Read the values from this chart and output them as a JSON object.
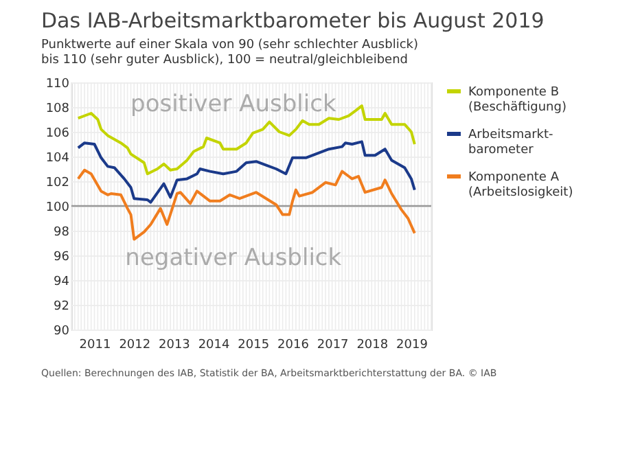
{
  "chart_data": {
    "type": "line",
    "title": "Das IAB-Arbeitsmarktbarometer bis August 2019",
    "subtitle": "Punktwerte auf einer Skala von 90 (sehr schlechter Ausblick) bis 110 (sehr guter Ausblick), 100 = neutral/gleichbleibend",
    "annotations": [
      "positiver Ausblick",
      "negativer Ausblick",
      "Quellen: Berechnungen des IAB, Statistik der BA, Arbeitsmarktberichterstattung der BA. © IAB"
    ],
    "series": [
      {
        "name": "Komponente B (Beschäftigung)",
        "color": "#c3d400",
        "x": [
          "2011-02",
          "2011-06",
          "2011-08",
          "2011-09",
          "2011-11",
          "2012-03",
          "2012-05",
          "2012-06",
          "2012-10",
          "2012-11",
          "2013-02",
          "2013-04",
          "2013-06",
          "2013-08",
          "2013-11",
          "2014-01",
          "2014-04",
          "2014-05",
          "2014-09",
          "2014-10",
          "2015-02",
          "2015-05",
          "2015-07",
          "2015-10",
          "2015-12",
          "2016-03",
          "2016-06",
          "2016-08",
          "2016-10",
          "2016-12",
          "2017-03",
          "2017-06",
          "2017-09",
          "2017-12",
          "2018-02",
          "2018-04",
          "2018-05",
          "2018-10",
          "2018-11",
          "2019-01",
          "2019-05",
          "2019-07",
          "2019-08"
        ],
        "values": [
          107.1,
          107.5,
          107.0,
          106.2,
          105.7,
          105.1,
          104.7,
          104.2,
          103.5,
          102.6,
          103.0,
          103.4,
          102.9,
          103.0,
          103.7,
          104.4,
          104.8,
          105.5,
          105.1,
          104.6,
          104.6,
          105.1,
          105.9,
          106.2,
          106.8,
          106.0,
          105.7,
          106.2,
          106.9,
          106.6,
          106.6,
          107.1,
          107.0,
          107.3,
          107.7,
          108.1,
          107.0,
          107.0,
          107.5,
          106.6,
          106.6,
          106.0,
          105.0
        ]
      },
      {
        "name": "Arbeitsmarkt-barometer",
        "color": "#1b3a8a",
        "x": [
          "2011-02",
          "2011-04",
          "2011-07",
          "2011-09",
          "2011-11",
          "2012-01",
          "2012-04",
          "2012-06",
          "2012-07",
          "2012-11",
          "2012-12",
          "2013-04",
          "2013-06",
          "2013-08",
          "2013-11",
          "2014-02",
          "2014-03",
          "2014-06",
          "2014-10",
          "2015-02",
          "2015-05",
          "2015-08",
          "2015-11",
          "2016-02",
          "2016-05",
          "2016-07",
          "2016-11",
          "2017-02",
          "2017-06",
          "2017-10",
          "2017-11",
          "2018-01",
          "2018-04",
          "2018-05",
          "2018-08",
          "2018-11",
          "2019-01",
          "2019-05",
          "2019-07",
          "2019-08"
        ],
        "values": [
          104.7,
          105.1,
          105.0,
          103.9,
          103.2,
          103.1,
          102.2,
          101.5,
          100.6,
          100.5,
          100.3,
          101.8,
          100.7,
          102.1,
          102.2,
          102.6,
          103.0,
          102.8,
          102.6,
          102.8,
          103.5,
          103.6,
          103.3,
          103.0,
          102.6,
          103.9,
          103.9,
          104.2,
          104.6,
          104.8,
          105.1,
          105.0,
          105.2,
          104.1,
          104.1,
          104.6,
          103.7,
          103.1,
          102.2,
          101.3
        ]
      },
      {
        "name": "Komponente A (Arbeitslosigkeit)",
        "color": "#f07d1e",
        "x": [
          "2011-02",
          "2011-04",
          "2011-06",
          "2011-09",
          "2011-11",
          "2011-12",
          "2012-03",
          "2012-05",
          "2012-06",
          "2012-07",
          "2012-10",
          "2012-12",
          "2013-03",
          "2013-05",
          "2013-08",
          "2013-09",
          "2013-12",
          "2014-02",
          "2014-06",
          "2014-09",
          "2014-12",
          "2015-03",
          "2015-08",
          "2015-11",
          "2016-02",
          "2016-04",
          "2016-06",
          "2016-07",
          "2016-08",
          "2016-09",
          "2017-01",
          "2017-05",
          "2017-08",
          "2017-10",
          "2018-01",
          "2018-03",
          "2018-05",
          "2018-10",
          "2018-11",
          "2019-01",
          "2019-04",
          "2019-06",
          "2019-08"
        ],
        "values": [
          102.2,
          102.9,
          102.6,
          101.2,
          100.9,
          101.0,
          100.9,
          99.8,
          99.3,
          97.3,
          97.9,
          98.5,
          99.8,
          98.5,
          101.0,
          101.1,
          100.2,
          101.2,
          100.4,
          100.4,
          100.9,
          100.6,
          101.1,
          100.6,
          100.1,
          99.3,
          99.3,
          100.4,
          101.3,
          100.8,
          101.1,
          101.9,
          101.7,
          102.8,
          102.2,
          102.4,
          101.1,
          101.5,
          102.1,
          101.0,
          99.7,
          99.0,
          97.8
        ]
      }
    ],
    "xlim": [
      "2010-12",
      "2020-01"
    ],
    "xticks": [
      {
        "value": "2011-07",
        "label": "2011"
      },
      {
        "value": "2012-07",
        "label": "2012"
      },
      {
        "value": "2013-07",
        "label": "2013"
      },
      {
        "value": "2014-07",
        "label": "2014"
      },
      {
        "value": "2015-07",
        "label": "2015"
      },
      {
        "value": "2016-07",
        "label": "2016"
      },
      {
        "value": "2017-07",
        "label": "2017"
      },
      {
        "value": "2018-07",
        "label": "2018"
      },
      {
        "value": "2019-07",
        "label": "2019"
      }
    ],
    "ylim": [
      90,
      110
    ],
    "yticks": [
      90,
      92,
      94,
      96,
      98,
      100,
      102,
      104,
      106,
      108,
      110
    ],
    "ref_lines": [
      {
        "axis": "y",
        "value": 100,
        "color": "#999999"
      }
    ],
    "grid": true,
    "legend": "right",
    "line_style": "solid",
    "marker": "none"
  }
}
